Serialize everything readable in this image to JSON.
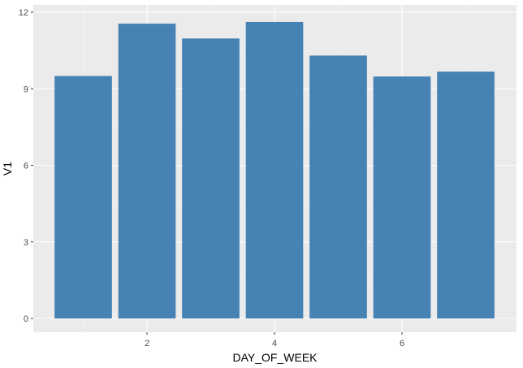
{
  "chart_data": {
    "type": "bar",
    "x": [
      1,
      2,
      3,
      4,
      5,
      6,
      7
    ],
    "values": [
      9.5,
      11.55,
      10.97,
      11.62,
      10.3,
      9.48,
      9.67
    ],
    "xlabel": "DAY_OF_WEEK",
    "ylabel": "V1",
    "xlim": [
      0.5,
      7.5
    ],
    "ylim": [
      0,
      12
    ],
    "x_ticks": [
      "2",
      "4",
      "6"
    ],
    "y_ticks": [
      "0",
      "3",
      "6",
      "9",
      "12"
    ],
    "grid": true,
    "legend": "none",
    "colors": {
      "bar": "#4682b4",
      "panel": "#ebebeb",
      "grid_major": "#ffffff",
      "grid_minor": "#f5f5f5"
    }
  }
}
